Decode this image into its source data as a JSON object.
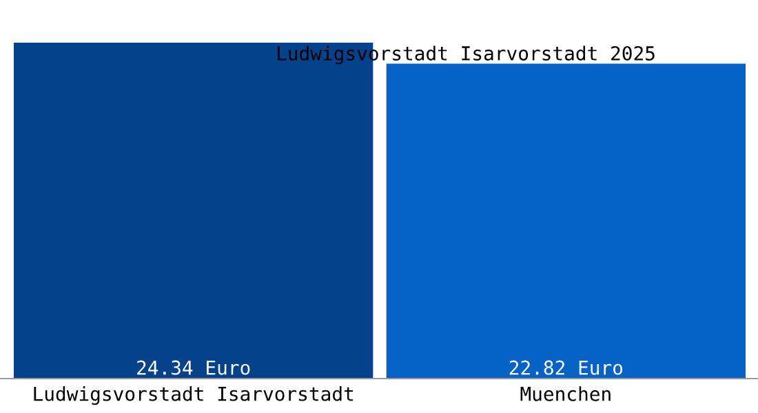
{
  "chart_data": {
    "type": "bar",
    "title": "Ludwigsvorstadt Isarvorstadt 2025",
    "categories": [
      "Ludwigsvorstadt Isarvorstadt",
      "Muenchen"
    ],
    "values": [
      24.34,
      22.82
    ],
    "colors": [
      "#04428c",
      "#0563c8"
    ],
    "value_labels": [
      "24.34 Euro",
      "22.82 Euro"
    ]
  }
}
